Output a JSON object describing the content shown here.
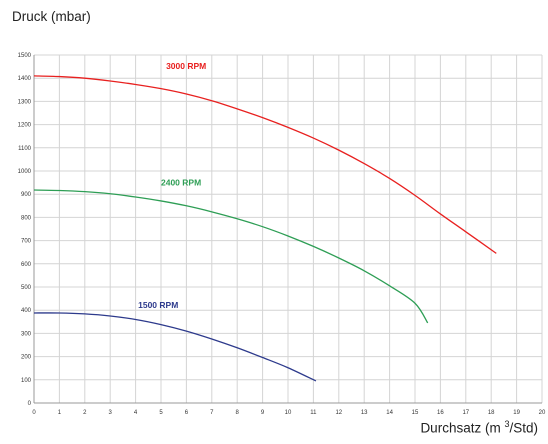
{
  "chart_data": {
    "type": "line",
    "ylabel": "Druck (mbar)",
    "xlabel": {
      "text": "Durchsatz (m",
      "sup": "3",
      "tail": "/Std)"
    },
    "xlim": [
      0,
      20
    ],
    "ylim": [
      0,
      1500
    ],
    "xticks": [
      0,
      1,
      2,
      3,
      4,
      5,
      6,
      7,
      8,
      9,
      10,
      11,
      12,
      13,
      14,
      15,
      16,
      17,
      18,
      19,
      20
    ],
    "yticks": [
      0,
      100,
      200,
      300,
      400,
      500,
      600,
      700,
      800,
      900,
      1000,
      1100,
      1200,
      1300,
      1400,
      1500
    ],
    "grid": true,
    "series": [
      {
        "name": "3000 RPM",
        "color": "#e8201f",
        "label_at": [
          5.2,
          1440
        ],
        "points": [
          [
            0,
            1410
          ],
          [
            1,
            1407
          ],
          [
            2,
            1400
          ],
          [
            3,
            1388
          ],
          [
            4,
            1373
          ],
          [
            5,
            1355
          ],
          [
            6,
            1332
          ],
          [
            7,
            1303
          ],
          [
            8,
            1268
          ],
          [
            9,
            1230
          ],
          [
            10,
            1188
          ],
          [
            11,
            1142
          ],
          [
            12,
            1090
          ],
          [
            13,
            1032
          ],
          [
            14,
            968
          ],
          [
            15,
            895
          ],
          [
            16,
            815
          ],
          [
            17,
            738
          ],
          [
            18.2,
            645
          ]
        ]
      },
      {
        "name": "2400 RPM",
        "color": "#2e9e55",
        "label_at": [
          5.0,
          938
        ],
        "points": [
          [
            0,
            918
          ],
          [
            1,
            916
          ],
          [
            2,
            911
          ],
          [
            3,
            902
          ],
          [
            4,
            888
          ],
          [
            5,
            871
          ],
          [
            6,
            850
          ],
          [
            7,
            824
          ],
          [
            8,
            794
          ],
          [
            9,
            760
          ],
          [
            10,
            720
          ],
          [
            11,
            675
          ],
          [
            12,
            625
          ],
          [
            13,
            570
          ],
          [
            14,
            505
          ],
          [
            15,
            430
          ],
          [
            15.5,
            345
          ]
        ]
      },
      {
        "name": "1500 RPM",
        "color": "#2d3a8c",
        "label_at": [
          4.1,
          410
        ],
        "points": [
          [
            0,
            388
          ],
          [
            1,
            388
          ],
          [
            2,
            384
          ],
          [
            3,
            375
          ],
          [
            4,
            360
          ],
          [
            5,
            338
          ],
          [
            6,
            310
          ],
          [
            7,
            276
          ],
          [
            8,
            238
          ],
          [
            9,
            196
          ],
          [
            10,
            152
          ],
          [
            11.1,
            95
          ]
        ]
      }
    ]
  }
}
